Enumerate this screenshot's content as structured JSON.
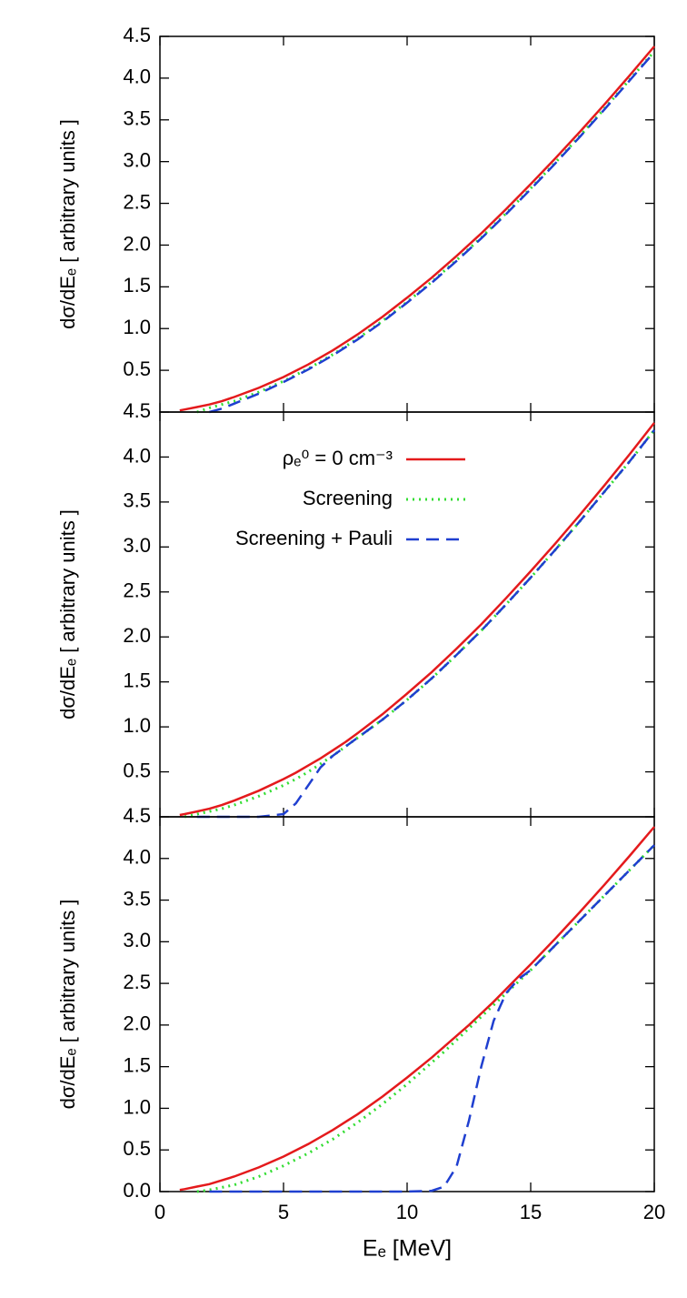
{
  "chart_data": [
    {
      "type": "line",
      "ylabel": "dσ/dEₑ [ arbitrary units ]",
      "xlim": [
        0,
        20
      ],
      "ylim": [
        0,
        4.5
      ],
      "yticks": [
        0.5,
        {
          "value": 1,
          "label": "1.0"
        },
        1.5,
        {
          "value": 2,
          "label": "2.0"
        },
        2.5,
        {
          "value": 3,
          "label": "3.0"
        },
        3.5,
        {
          "value": 4,
          "label": "4.0"
        },
        4.5
      ],
      "x": [
        0.8,
        1,
        1.5,
        2,
        2.5,
        3,
        4,
        5,
        6,
        7,
        8,
        9,
        10,
        11,
        12,
        13,
        14,
        15,
        16,
        17,
        18,
        19,
        20
      ],
      "series": [
        {
          "color": "#e41a1c",
          "dash": "solid",
          "values": [
            0.02,
            0.03,
            0.06,
            0.09,
            0.13,
            0.18,
            0.29,
            0.42,
            0.57,
            0.74,
            0.93,
            1.14,
            1.37,
            1.61,
            1.87,
            2.14,
            2.43,
            2.73,
            3.04,
            3.36,
            3.69,
            4.03,
            4.38
          ]
        },
        {
          "color": "#33dd33",
          "dash": "dotted",
          "values": [
            null,
            null,
            0.0,
            0.05,
            0.09,
            0.13,
            0.24,
            0.37,
            0.52,
            0.69,
            0.88,
            1.09,
            1.32,
            1.56,
            1.82,
            2.09,
            2.38,
            2.68,
            2.99,
            3.31,
            3.64,
            3.98,
            4.32
          ]
        },
        {
          "color": "#1f3fd0",
          "dash": "dashed",
          "values": [
            null,
            null,
            null,
            0.0,
            0.04,
            0.1,
            0.22,
            0.36,
            0.51,
            0.68,
            0.87,
            1.08,
            1.31,
            1.55,
            1.81,
            2.08,
            2.37,
            2.67,
            2.98,
            3.3,
            3.63,
            3.97,
            4.31
          ]
        }
      ]
    },
    {
      "type": "line",
      "ylabel": "dσ/dEₑ [ arbitrary units ]",
      "xlim": [
        0,
        20
      ],
      "ylim": [
        0,
        4.5
      ],
      "legend": "top-left",
      "yticks": [
        0.5,
        {
          "value": 1,
          "label": "1.0"
        },
        1.5,
        {
          "value": 2,
          "label": "2.0"
        },
        2.5,
        {
          "value": 3,
          "label": "3.0"
        },
        3.5,
        {
          "value": 4,
          "label": "4.0"
        },
        4.5
      ],
      "x": [
        0.8,
        1,
        1.5,
        2,
        2.5,
        3,
        4,
        5,
        5.5,
        6,
        6.5,
        7,
        7.5,
        8,
        9,
        10,
        11,
        12,
        13,
        14,
        15,
        16,
        17,
        18,
        19,
        20
      ],
      "series": [
        {
          "name": "ρₑ⁰ = 0 cm⁻³",
          "color": "#e41a1c",
          "dash": "solid",
          "values": [
            0.02,
            0.03,
            0.06,
            0.09,
            0.13,
            0.18,
            0.29,
            0.42,
            0.49,
            0.57,
            0.65,
            0.74,
            0.83,
            0.93,
            1.14,
            1.37,
            1.61,
            1.87,
            2.14,
            2.43,
            2.73,
            3.04,
            3.36,
            3.69,
            4.03,
            4.38
          ]
        },
        {
          "name": "Screening",
          "color": "#33dd33",
          "dash": "dotted",
          "values": [
            null,
            0.0,
            0.03,
            0.06,
            0.09,
            0.13,
            0.23,
            0.35,
            0.42,
            0.5,
            0.59,
            0.68,
            0.78,
            0.88,
            1.08,
            1.3,
            1.54,
            1.8,
            2.07,
            2.36,
            2.66,
            2.97,
            3.29,
            3.62,
            3.95,
            4.3
          ]
        },
        {
          "name": "Screening + Pauli",
          "color": "#1f3fd0",
          "dash": "dashed",
          "values": [
            null,
            null,
            0.0,
            0.0,
            0.0,
            0.0,
            0.0,
            0.03,
            0.15,
            0.35,
            0.55,
            0.68,
            0.78,
            0.88,
            1.08,
            1.3,
            1.54,
            1.8,
            2.07,
            2.36,
            2.66,
            2.97,
            3.29,
            3.62,
            3.95,
            4.3
          ]
        }
      ]
    },
    {
      "type": "line",
      "ylabel": "dσ/dEₑ [ arbitrary units ]",
      "xlabel": "Eₑ [MeV]",
      "xlim": [
        0,
        20
      ],
      "ylim": [
        0,
        4.5
      ],
      "xticks": [
        0,
        5,
        10,
        15,
        20
      ],
      "yticks": [
        {
          "value": 0,
          "label": "0.0"
        },
        0.5,
        {
          "value": 1,
          "label": "1.0"
        },
        1.5,
        {
          "value": 2,
          "label": "2.0"
        },
        2.5,
        {
          "value": 3,
          "label": "3.0"
        },
        3.5,
        {
          "value": 4,
          "label": "4.0"
        },
        4.5
      ],
      "x": [
        0.8,
        1,
        1.5,
        2,
        3,
        4,
        5,
        6,
        7,
        8,
        9,
        10,
        11,
        11.5,
        12,
        12.5,
        13,
        13.5,
        14,
        14.5,
        15,
        16,
        17,
        18,
        19,
        20
      ],
      "series": [
        {
          "color": "#e41a1c",
          "dash": "solid",
          "values": [
            0.02,
            0.03,
            0.06,
            0.09,
            0.18,
            0.29,
            0.42,
            0.57,
            0.74,
            0.93,
            1.14,
            1.37,
            1.61,
            1.74,
            1.87,
            2.0,
            2.14,
            2.28,
            2.43,
            2.58,
            2.73,
            3.04,
            3.36,
            3.69,
            4.03,
            4.38
          ]
        },
        {
          "color": "#33dd33",
          "dash": "dotted",
          "values": [
            null,
            null,
            0.0,
            0.02,
            0.08,
            0.18,
            0.31,
            0.46,
            0.63,
            0.83,
            1.05,
            1.29,
            1.55,
            1.68,
            1.82,
            1.96,
            2.1,
            2.24,
            2.38,
            2.52,
            2.66,
            2.96,
            3.26,
            3.56,
            3.86,
            4.16
          ]
        },
        {
          "color": "#1f3fd0",
          "dash": "dashed",
          "values": [
            null,
            null,
            null,
            0.0,
            0.0,
            0.0,
            0.0,
            0.0,
            0.0,
            0.0,
            0.0,
            0.0,
            0.01,
            0.06,
            0.3,
            0.85,
            1.5,
            2.05,
            2.38,
            2.55,
            2.66,
            2.96,
            3.26,
            3.56,
            3.86,
            4.16
          ]
        }
      ]
    }
  ]
}
